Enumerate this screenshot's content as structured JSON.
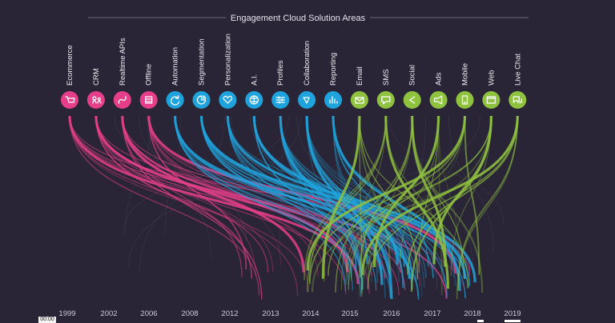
{
  "title": "Engagement Cloud Solution Areas",
  "colors": {
    "background": "#2a2536",
    "pink": "#e63f8a",
    "blue": "#1fa3dc",
    "green": "#8fc23f"
  },
  "categories": [
    {
      "label": "Ecommerce",
      "group": "pink",
      "icon": "cart-icon"
    },
    {
      "label": "CRM",
      "group": "pink",
      "icon": "users-icon"
    },
    {
      "label": "Realtime APIs",
      "group": "pink",
      "icon": "api-link-icon"
    },
    {
      "label": "Offline",
      "group": "pink",
      "icon": "database-icon"
    },
    {
      "label": "Automation",
      "group": "blue",
      "icon": "refresh-icon"
    },
    {
      "label": "Segmentation",
      "group": "blue",
      "icon": "pie-segment-icon"
    },
    {
      "label": "Personalization",
      "group": "blue",
      "icon": "heart-icon"
    },
    {
      "label": "A.I.",
      "group": "blue",
      "icon": "brain-icon"
    },
    {
      "label": "Profiles",
      "group": "blue",
      "icon": "sliders-icon"
    },
    {
      "label": "Collaboration",
      "group": "blue",
      "icon": "network-icon"
    },
    {
      "label": "Reporting",
      "group": "blue",
      "icon": "bar-chart-icon"
    },
    {
      "label": "Email",
      "group": "green",
      "icon": "envelope-icon"
    },
    {
      "label": "SMS",
      "group": "green",
      "icon": "chat-bubble-icon"
    },
    {
      "label": "Social",
      "group": "green",
      "icon": "share-icon"
    },
    {
      "label": "Ads",
      "group": "green",
      "icon": "megaphone-icon"
    },
    {
      "label": "Mobile",
      "group": "green",
      "icon": "phone-icon"
    },
    {
      "label": "Web",
      "group": "green",
      "icon": "browser-window-icon"
    },
    {
      "label": "Live Chat",
      "group": "green",
      "icon": "chat-bubbles-icon"
    }
  ],
  "years": [
    "1999",
    "2002",
    "2006",
    "2008",
    "2012",
    "2013",
    "2014",
    "2015",
    "2016",
    "2017",
    "2018",
    "2019"
  ],
  "video": {
    "time": "00:00",
    "progress": 0.0
  }
}
